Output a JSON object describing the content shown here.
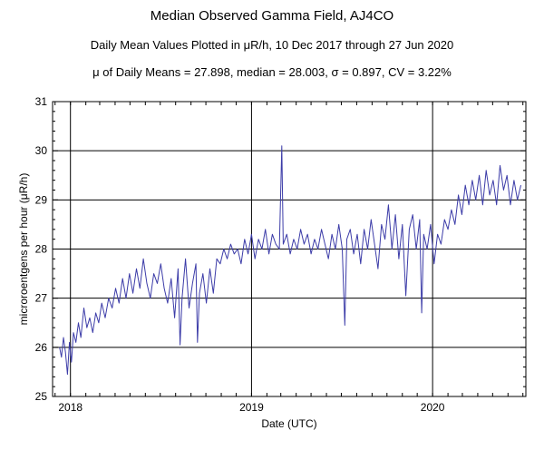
{
  "titles": {
    "main": "Median Observed Gamma Field, AJ4CO",
    "subtitle": "Daily Mean Values Plotted in μR/h, 10 Dec 2017 through 27 Jun 2020",
    "stats": "μ of Daily Means = 27.898,   median = 28.003,   σ = 0.897,   CV = 3.22%"
  },
  "chart_data": {
    "type": "line",
    "xlabel": "Date (UTC)",
    "ylabel": "microroentgens per hour (μR/h)",
    "xlim": [
      "2017-11-26",
      "2020-07-07"
    ],
    "ylim": [
      25,
      31
    ],
    "x_ticks": [
      "2018",
      "2019",
      "2020"
    ],
    "y_ticks": [
      "25",
      "26",
      "27",
      "28",
      "29",
      "30",
      "31"
    ],
    "grid": true,
    "line_color": "#3c3ca8",
    "series": [
      {
        "values": [
          [
            "2017-12-10",
            26.0
          ],
          [
            "2017-12-14",
            25.8
          ],
          [
            "2017-12-18",
            26.2
          ],
          [
            "2017-12-22",
            25.9
          ],
          [
            "2017-12-26",
            25.45
          ],
          [
            "2017-12-30",
            26.1
          ],
          [
            "2018-01-03",
            25.7
          ],
          [
            "2018-01-07",
            26.3
          ],
          [
            "2018-01-12",
            26.1
          ],
          [
            "2018-01-17",
            26.5
          ],
          [
            "2018-01-22",
            26.2
          ],
          [
            "2018-01-28",
            26.8
          ],
          [
            "2018-02-03",
            26.4
          ],
          [
            "2018-02-09",
            26.6
          ],
          [
            "2018-02-15",
            26.3
          ],
          [
            "2018-02-21",
            26.7
          ],
          [
            "2018-02-27",
            26.5
          ],
          [
            "2018-03-05",
            26.9
          ],
          [
            "2018-03-12",
            26.6
          ],
          [
            "2018-03-19",
            27.0
          ],
          [
            "2018-03-26",
            26.8
          ],
          [
            "2018-04-02",
            27.2
          ],
          [
            "2018-04-09",
            26.9
          ],
          [
            "2018-04-16",
            27.4
          ],
          [
            "2018-04-23",
            27.0
          ],
          [
            "2018-04-30",
            27.5
          ],
          [
            "2018-05-07",
            27.1
          ],
          [
            "2018-05-14",
            27.6
          ],
          [
            "2018-05-21",
            27.2
          ],
          [
            "2018-05-28",
            27.8
          ],
          [
            "2018-06-04",
            27.3
          ],
          [
            "2018-06-11",
            27.0
          ],
          [
            "2018-06-18",
            27.5
          ],
          [
            "2018-06-25",
            27.3
          ],
          [
            "2018-07-02",
            27.7
          ],
          [
            "2018-07-09",
            27.2
          ],
          [
            "2018-07-16",
            26.9
          ],
          [
            "2018-07-23",
            27.4
          ],
          [
            "2018-07-30",
            26.6
          ],
          [
            "2018-08-06",
            27.6
          ],
          [
            "2018-08-10",
            26.05
          ],
          [
            "2018-08-14",
            27.0
          ],
          [
            "2018-08-21",
            27.8
          ],
          [
            "2018-08-28",
            26.8
          ],
          [
            "2018-09-04",
            27.3
          ],
          [
            "2018-09-11",
            27.7
          ],
          [
            "2018-09-14",
            26.1
          ],
          [
            "2018-09-18",
            27.1
          ],
          [
            "2018-09-25",
            27.5
          ],
          [
            "2018-10-02",
            26.9
          ],
          [
            "2018-10-09",
            27.6
          ],
          [
            "2018-10-16",
            27.1
          ],
          [
            "2018-10-23",
            27.8
          ],
          [
            "2018-10-30",
            27.7
          ],
          [
            "2018-11-06",
            28.0
          ],
          [
            "2018-11-13",
            27.8
          ],
          [
            "2018-11-20",
            28.1
          ],
          [
            "2018-11-27",
            27.9
          ],
          [
            "2018-12-04",
            28.0
          ],
          [
            "2018-12-11",
            27.7
          ],
          [
            "2018-12-18",
            28.2
          ],
          [
            "2018-12-25",
            27.9
          ],
          [
            "2019-01-01",
            28.3
          ],
          [
            "2019-01-08",
            27.8
          ],
          [
            "2019-01-15",
            28.2
          ],
          [
            "2019-01-22",
            28.0
          ],
          [
            "2019-01-29",
            28.4
          ],
          [
            "2019-02-05",
            27.9
          ],
          [
            "2019-02-12",
            28.3
          ],
          [
            "2019-02-19",
            28.1
          ],
          [
            "2019-02-26",
            28.0
          ],
          [
            "2019-03-03",
            30.1
          ],
          [
            "2019-03-06",
            28.1
          ],
          [
            "2019-03-13",
            28.3
          ],
          [
            "2019-03-20",
            27.9
          ],
          [
            "2019-03-27",
            28.2
          ],
          [
            "2019-04-03",
            28.0
          ],
          [
            "2019-04-10",
            28.4
          ],
          [
            "2019-04-17",
            28.1
          ],
          [
            "2019-04-24",
            28.3
          ],
          [
            "2019-05-01",
            27.9
          ],
          [
            "2019-05-08",
            28.2
          ],
          [
            "2019-05-15",
            28.0
          ],
          [
            "2019-05-22",
            28.4
          ],
          [
            "2019-05-29",
            28.1
          ],
          [
            "2019-06-05",
            27.8
          ],
          [
            "2019-06-12",
            28.3
          ],
          [
            "2019-06-19",
            28.0
          ],
          [
            "2019-06-26",
            28.5
          ],
          [
            "2019-07-03",
            28.0
          ],
          [
            "2019-07-08",
            26.45
          ],
          [
            "2019-07-12",
            28.2
          ],
          [
            "2019-07-19",
            28.4
          ],
          [
            "2019-07-26",
            27.9
          ],
          [
            "2019-08-02",
            28.3
          ],
          [
            "2019-08-09",
            27.7
          ],
          [
            "2019-08-16",
            28.4
          ],
          [
            "2019-08-23",
            28.0
          ],
          [
            "2019-08-30",
            28.6
          ],
          [
            "2019-09-06",
            28.1
          ],
          [
            "2019-09-13",
            27.6
          ],
          [
            "2019-09-20",
            28.5
          ],
          [
            "2019-09-27",
            28.2
          ],
          [
            "2019-10-04",
            28.9
          ],
          [
            "2019-10-11",
            28.0
          ],
          [
            "2019-10-18",
            28.7
          ],
          [
            "2019-10-25",
            27.8
          ],
          [
            "2019-11-01",
            28.5
          ],
          [
            "2019-11-08",
            27.05
          ],
          [
            "2019-11-15",
            28.4
          ],
          [
            "2019-11-22",
            28.7
          ],
          [
            "2019-11-29",
            28.0
          ],
          [
            "2019-12-06",
            28.6
          ],
          [
            "2019-12-10",
            26.7
          ],
          [
            "2019-12-14",
            28.3
          ],
          [
            "2019-12-21",
            28.0
          ],
          [
            "2019-12-28",
            28.5
          ],
          [
            "2020-01-04",
            27.7
          ],
          [
            "2020-01-11",
            28.3
          ],
          [
            "2020-01-18",
            28.1
          ],
          [
            "2020-01-25",
            28.6
          ],
          [
            "2020-02-01",
            28.4
          ],
          [
            "2020-02-08",
            28.8
          ],
          [
            "2020-02-15",
            28.5
          ],
          [
            "2020-02-22",
            29.1
          ],
          [
            "2020-02-29",
            28.7
          ],
          [
            "2020-03-07",
            29.3
          ],
          [
            "2020-03-14",
            28.9
          ],
          [
            "2020-03-21",
            29.4
          ],
          [
            "2020-03-28",
            29.0
          ],
          [
            "2020-04-04",
            29.5
          ],
          [
            "2020-04-11",
            28.9
          ],
          [
            "2020-04-18",
            29.6
          ],
          [
            "2020-04-25",
            29.1
          ],
          [
            "2020-05-02",
            29.4
          ],
          [
            "2020-05-09",
            28.9
          ],
          [
            "2020-05-16",
            29.7
          ],
          [
            "2020-05-23",
            29.2
          ],
          [
            "2020-05-30",
            29.5
          ],
          [
            "2020-06-06",
            28.9
          ],
          [
            "2020-06-13",
            29.4
          ],
          [
            "2020-06-20",
            29.0
          ],
          [
            "2020-06-27",
            29.3
          ]
        ]
      }
    ]
  }
}
